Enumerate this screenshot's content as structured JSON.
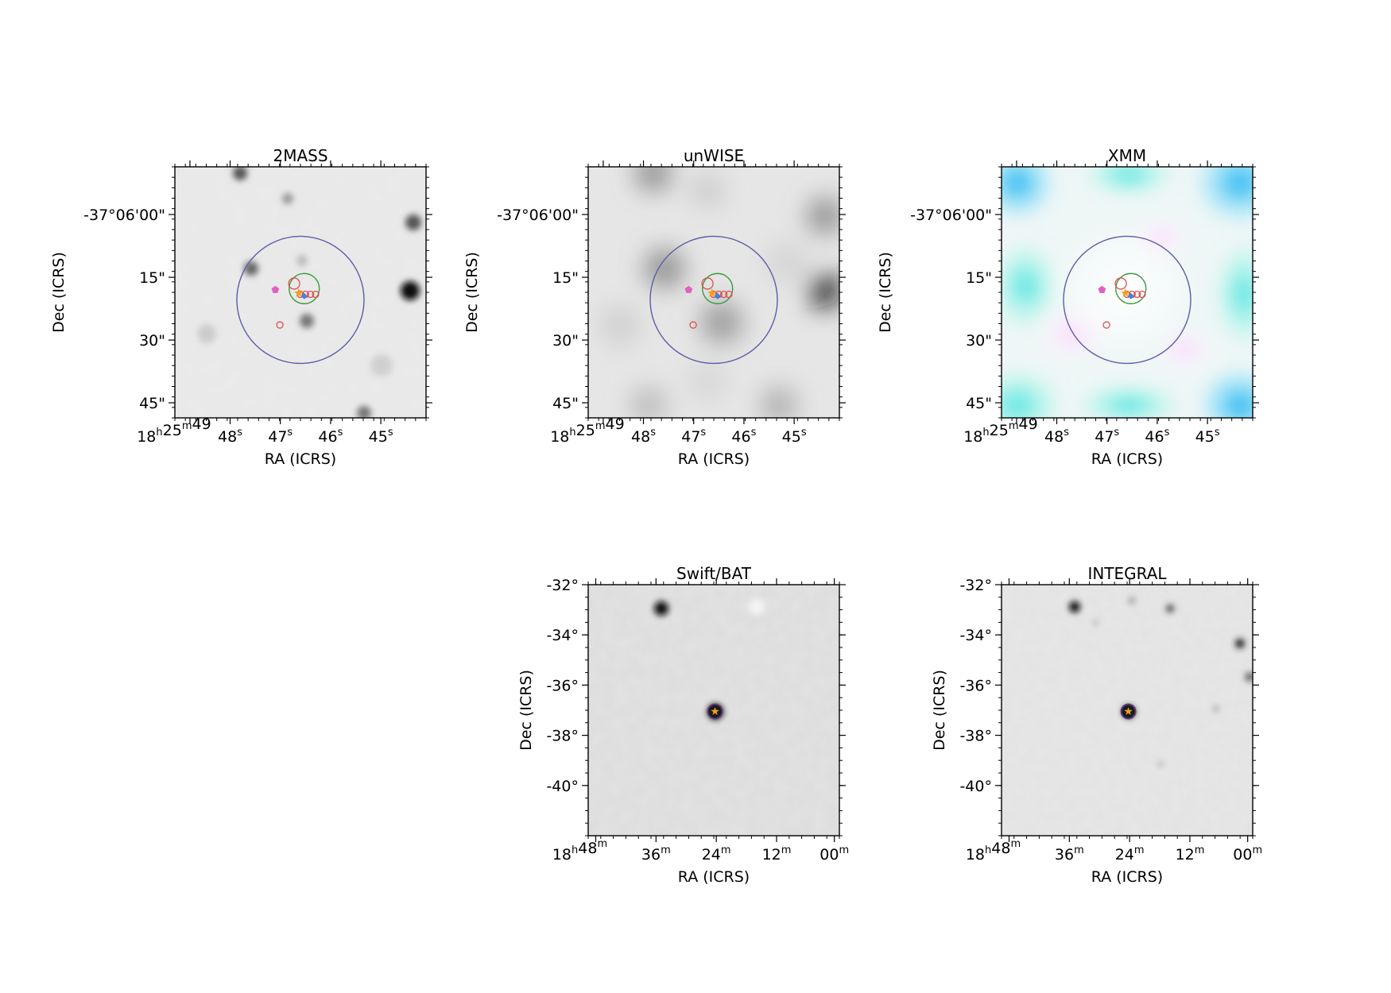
{
  "figure": {
    "panels": [
      {
        "id": "2mass",
        "title": "2MASS",
        "style": "gray-field",
        "xlabel": "RA (ICRS)",
        "ylabel": "Dec (ICRS)",
        "xticks": [
          {
            "main": "18",
            "sup": "h",
            "main2": "25",
            "sup2": "m",
            "main3": "49",
            "sup3": ""
          },
          {
            "main": "48",
            "sup": "s"
          },
          {
            "main": "47",
            "sup": "s"
          },
          {
            "main": "46",
            "sup": "s"
          },
          {
            "main": "45",
            "sup": "s"
          }
        ],
        "yticks": [
          "-37°06'00\"",
          "15\"",
          "30\"",
          "45\""
        ],
        "markers": [
          "large-blue-circle",
          "green-circle",
          "red-open-circles",
          "magenta-pentagon",
          "orange-star",
          "blue-diamond"
        ]
      },
      {
        "id": "unwise",
        "title": "unWISE",
        "style": "gray-smooth",
        "xlabel": "RA (ICRS)",
        "ylabel": "Dec (ICRS)",
        "xticks": [
          {
            "main": "18",
            "sup": "h",
            "main2": "25",
            "sup2": "m",
            "main3": "49",
            "sup3": ""
          },
          {
            "main": "48",
            "sup": "s"
          },
          {
            "main": "47",
            "sup": "s"
          },
          {
            "main": "46",
            "sup": "s"
          },
          {
            "main": "45",
            "sup": "s"
          }
        ],
        "yticks": [
          "-37°06'00\"",
          "15\"",
          "30\"",
          "45\""
        ],
        "markers": [
          "large-blue-circle",
          "green-circle",
          "red-open-circles",
          "magenta-pentagon",
          "orange-star",
          "blue-diamond"
        ]
      },
      {
        "id": "xmm",
        "title": "XMM",
        "style": "color-rgb",
        "xlabel": "RA (ICRS)",
        "ylabel": "Dec (ICRS)",
        "xticks": [
          {
            "main": "18",
            "sup": "h",
            "main2": "25",
            "sup2": "m",
            "main3": "49",
            "sup3": ""
          },
          {
            "main": "48",
            "sup": "s"
          },
          {
            "main": "47",
            "sup": "s"
          },
          {
            "main": "46",
            "sup": "s"
          },
          {
            "main": "45",
            "sup": "s"
          }
        ],
        "yticks": [
          "-37°06'00\"",
          "15\"",
          "30\"",
          "45\""
        ],
        "markers": [
          "large-blue-circle",
          "green-circle",
          "red-open-circles",
          "magenta-pentagon",
          "orange-star",
          "blue-diamond"
        ]
      },
      {
        "id": "swift-bat",
        "title": "Swift/BAT",
        "style": "gray-noise",
        "xlabel": "RA (ICRS)",
        "ylabel": "Dec (ICRS)",
        "xticks": [
          {
            "main": "18",
            "sup": "h",
            "main2": "48",
            "sup2": "m"
          },
          {
            "main": "36",
            "sup": "m"
          },
          {
            "main": "24",
            "sup": "m"
          },
          {
            "main": "12",
            "sup": "m"
          },
          {
            "main": "00",
            "sup": "m"
          }
        ],
        "yticks": [
          "-32°",
          "-34°",
          "-36°",
          "-38°",
          "-40°"
        ],
        "markers": [
          "dark-source",
          "orange-star"
        ]
      },
      {
        "id": "integral",
        "title": "INTEGRAL",
        "style": "gray-noise-light",
        "xlabel": "RA (ICRS)",
        "ylabel": "Dec (ICRS)",
        "xticks": [
          {
            "main": "18",
            "sup": "h",
            "main2": "48",
            "sup2": "m"
          },
          {
            "main": "36",
            "sup": "m"
          },
          {
            "main": "24",
            "sup": "m"
          },
          {
            "main": "12",
            "sup": "m"
          },
          {
            "main": "00",
            "sup": "m"
          }
        ],
        "yticks": [
          "-32°",
          "-34°",
          "-36°",
          "-38°",
          "-40°"
        ],
        "markers": [
          "dark-source",
          "orange-star"
        ]
      }
    ]
  },
  "colors": {
    "frame": "#000000",
    "circle_blue": "#5c5ca8",
    "circle_green": "#3a9a3a",
    "circle_red": "#e05050",
    "pentagon_magenta": "#e060c0",
    "star_orange": "#f0a020",
    "diamond_blue": "#4080e0"
  }
}
